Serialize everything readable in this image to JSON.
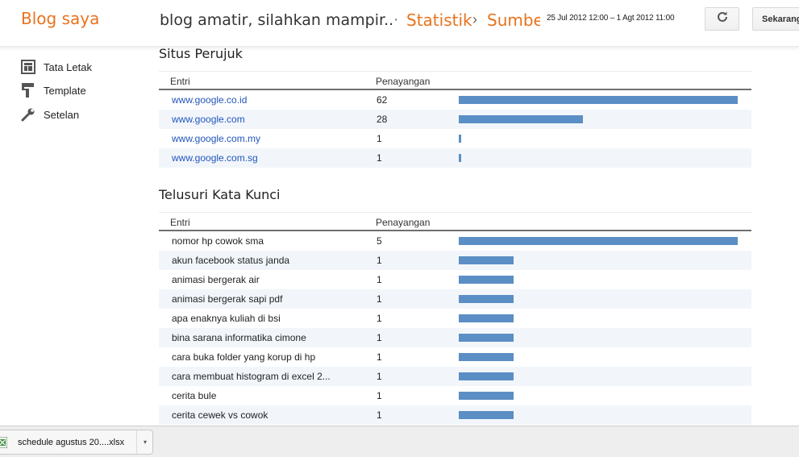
{
  "header": {
    "brand": "Blog saya",
    "blog_title": "blog amatir, silahkan mampir..",
    "separator": "·",
    "breadcrumb": [
      "Statistik",
      "Sumbe"
    ],
    "breadcrumb_separator": "›",
    "date_range": "25 Jul 2012 12:00 – 1 Agt 2012 11:00",
    "refresh_icon": "refresh-icon",
    "now_button": "Sekarang"
  },
  "sidebar": {
    "items": [
      {
        "label": "Tata Letak",
        "icon": "layout-icon"
      },
      {
        "label": "Template",
        "icon": "paint-roller-icon"
      },
      {
        "label": "Setelan",
        "icon": "wrench-icon"
      }
    ]
  },
  "accent": {
    "brand": "#e8731e",
    "bar": "#5b8ec4",
    "link": "#2255bb",
    "row_alt": "#f2f6fb"
  },
  "referrers": {
    "title": "Situs Perujuk",
    "columns": [
      "Entri",
      "Penayangan"
    ],
    "rows": [
      {
        "entry": "www.google.co.id",
        "views": "62",
        "bar_pct": 100
      },
      {
        "entry": "www.google.com",
        "views": "28",
        "bar_pct": 44.5
      },
      {
        "entry": "www.google.com.my",
        "views": "1",
        "bar_pct": 0.9
      },
      {
        "entry": "www.google.com.sg",
        "views": "1",
        "bar_pct": 0.9
      }
    ]
  },
  "keywords": {
    "title": "Telusuri Kata Kunci",
    "columns": [
      "Entri",
      "Penayangan"
    ],
    "rows": [
      {
        "entry": "nomor hp cowok sma",
        "views": "5",
        "bar_pct": 100
      },
      {
        "entry": "akun facebook status janda",
        "views": "1",
        "bar_pct": 19.7
      },
      {
        "entry": "animasi bergerak air",
        "views": "1",
        "bar_pct": 19.7
      },
      {
        "entry": "animasi bergerak sapi pdf",
        "views": "1",
        "bar_pct": 19.7
      },
      {
        "entry": "apa enaknya kuliah di bsi",
        "views": "1",
        "bar_pct": 19.7
      },
      {
        "entry": "bina sarana informatika cimone",
        "views": "1",
        "bar_pct": 19.7
      },
      {
        "entry": "cara buka folder yang korup di hp",
        "views": "1",
        "bar_pct": 19.7
      },
      {
        "entry": "cara membuat histogram di excel 2...",
        "views": "1",
        "bar_pct": 19.7
      },
      {
        "entry": "cerita bule",
        "views": "1",
        "bar_pct": 19.7
      },
      {
        "entry": "cerita cewek vs cowok",
        "views": "1",
        "bar_pct": 19.7
      }
    ]
  },
  "download_bar": {
    "file_name": "schedule agustus 20....xlsx",
    "file_icon": "excel-file-icon",
    "menu_arrow": "▾"
  }
}
